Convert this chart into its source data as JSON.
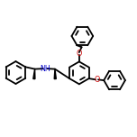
{
  "bg_color": "#ffffff",
  "bond_color": "#000000",
  "N_color": "#0000c8",
  "O_color": "#cc0000",
  "line_width": 1.3,
  "figsize": [
    1.52,
    1.52
  ],
  "dpi": 100,
  "xlim": [
    0,
    1
  ],
  "ylim": [
    0,
    1
  ],
  "r": 0.082
}
